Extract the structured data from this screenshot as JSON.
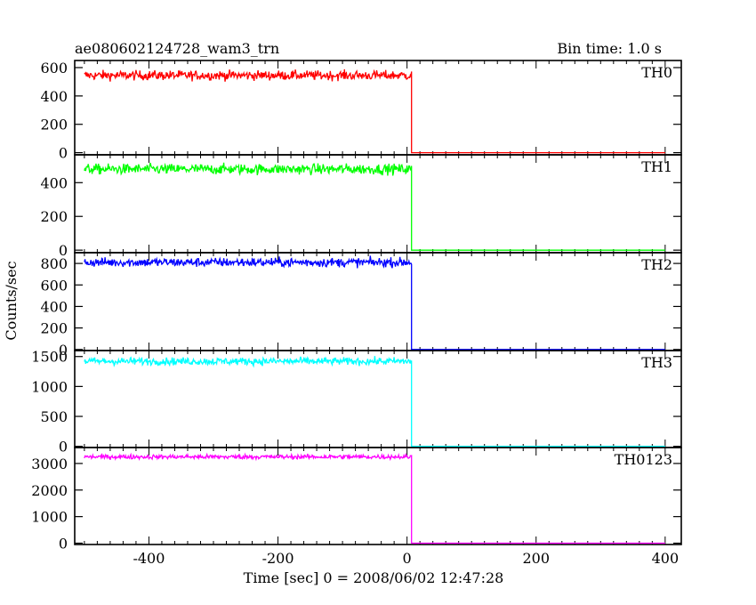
{
  "chart_data": {
    "type": "line",
    "title": "ae080602124728_wam3_trn",
    "subtitle": "Bin time: 1.0 s",
    "xlabel": "Time [sec] 0 = 2008/06/02 12:47:28",
    "ylabel": "Counts/sec",
    "xlim": [
      -515,
      425
    ],
    "xticks": [
      -400,
      -200,
      0,
      200,
      400
    ],
    "grid": false,
    "panels": [
      {
        "name": "TH0",
        "color": "#ff0000",
        "ylim": [
          -15,
          650
        ],
        "yticks": [
          0,
          200,
          400,
          600
        ],
        "mean": 545,
        "noise": 24,
        "start": -500,
        "drop_at": 7,
        "end": 400,
        "after": 0
      },
      {
        "name": "TH1",
        "color": "#00ff00",
        "ylim": [
          -15,
          565
        ],
        "yticks": [
          0,
          200,
          400
        ],
        "mean": 480,
        "noise": 22,
        "start": -500,
        "drop_at": 7,
        "end": 400,
        "after": 0
      },
      {
        "name": "TH2",
        "color": "#0000ff",
        "ylim": [
          -10,
          900
        ],
        "yticks": [
          0,
          200,
          400,
          600,
          800
        ],
        "mean": 810,
        "noise": 30,
        "start": -500,
        "drop_at": 7,
        "end": 400,
        "after": 0
      },
      {
        "name": "TH3",
        "color": "#00ffff",
        "ylim": [
          -20,
          1600
        ],
        "yticks": [
          0,
          500,
          1000,
          1500
        ],
        "mean": 1420,
        "noise": 45,
        "start": -500,
        "drop_at": 7,
        "end": 400,
        "after": 0
      },
      {
        "name": "TH0123",
        "color": "#ff00ff",
        "ylim": [
          -50,
          3600
        ],
        "yticks": [
          0,
          1000,
          2000,
          3000
        ],
        "mean": 3250,
        "noise": 60,
        "start": -500,
        "drop_at": 7,
        "end": 400,
        "after": 0
      }
    ]
  }
}
